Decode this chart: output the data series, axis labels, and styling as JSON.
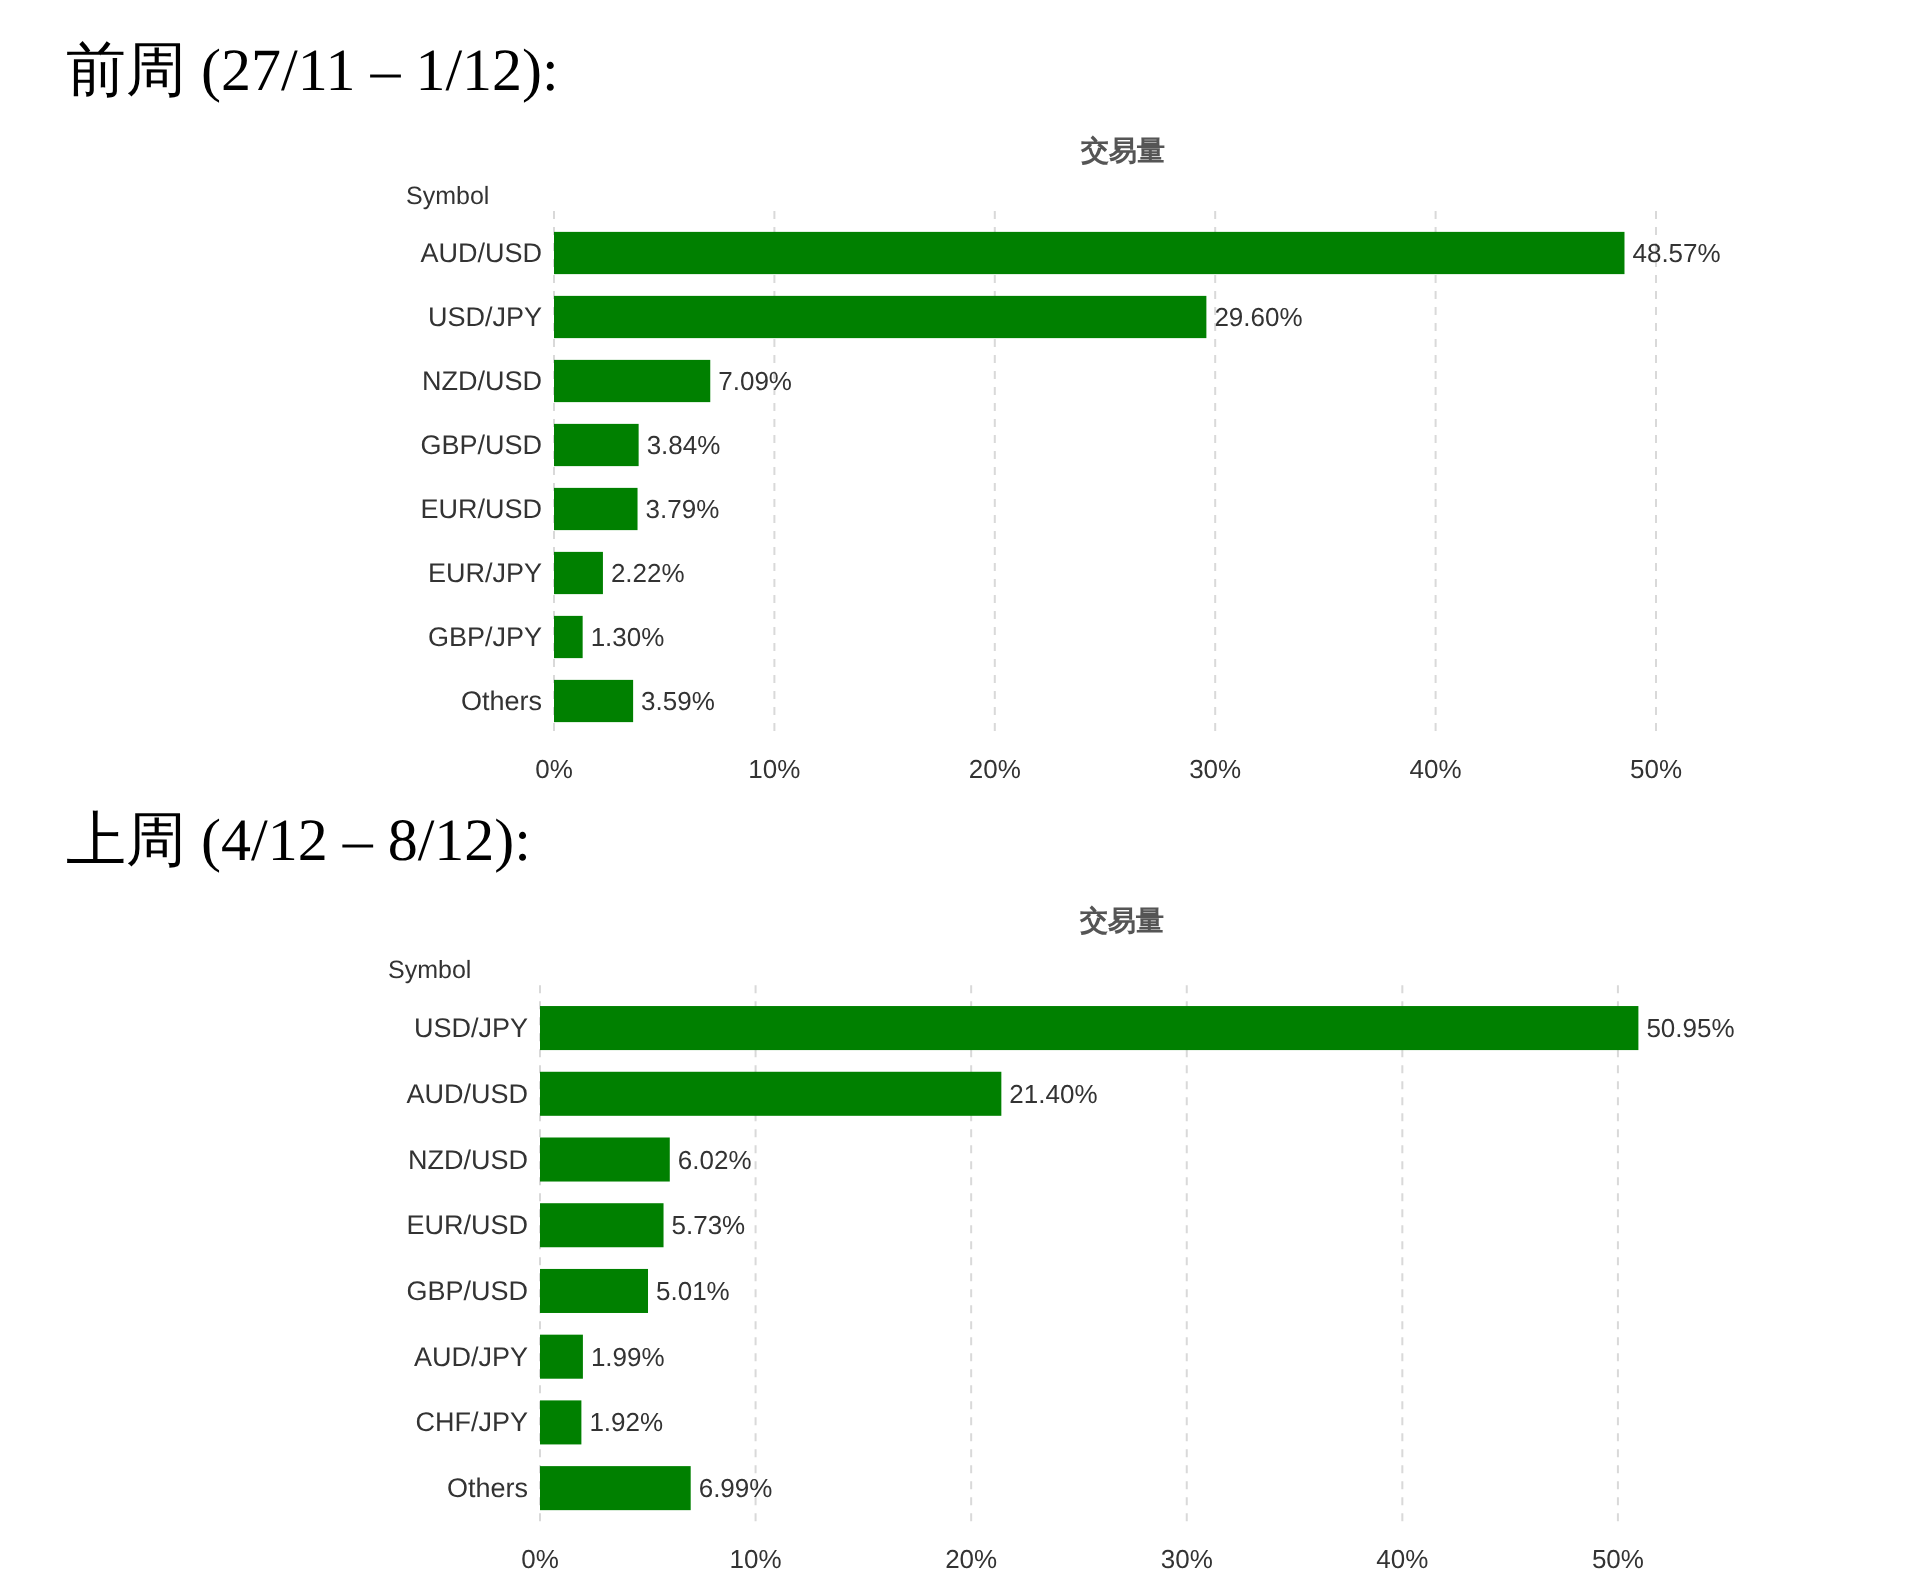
{
  "chart_data": [
    {
      "type": "bar",
      "orientation": "horizontal",
      "title": "前周 (27/11 – 1/12):",
      "xlabel": "交易量",
      "ylabel": "Symbol",
      "categories": [
        "AUD/USD",
        "USD/JPY",
        "NZD/USD",
        "GBP/USD",
        "EUR/USD",
        "EUR/JPY",
        "GBP/JPY",
        "Others"
      ],
      "values": [
        48.57,
        29.6,
        7.09,
        3.84,
        3.79,
        2.22,
        1.3,
        3.59
      ],
      "value_labels": [
        "48.57%",
        "29.60%",
        "7.09%",
        "3.84%",
        "3.79%",
        "2.22%",
        "1.30%",
        "3.59%"
      ],
      "color": "#008000",
      "xlim": [
        0,
        50
      ],
      "xticks": [
        {
          "value": 0,
          "label": "0%"
        },
        {
          "value": 10,
          "label": "10%"
        },
        {
          "value": 20,
          "label": "20%"
        },
        {
          "value": 30,
          "label": "30%"
        },
        {
          "value": 40,
          "label": "40%"
        },
        {
          "value": 50,
          "label": "50%"
        }
      ],
      "grid": "x"
    },
    {
      "type": "bar",
      "orientation": "horizontal",
      "title": "上周 (4/12 – 8/12):",
      "xlabel": "交易量",
      "ylabel": "Symbol",
      "categories": [
        "USD/JPY",
        "AUD/USD",
        "NZD/USD",
        "EUR/USD",
        "GBP/USD",
        "AUD/JPY",
        "CHF/JPY",
        "Others"
      ],
      "values": [
        50.95,
        21.4,
        6.02,
        5.73,
        5.01,
        1.99,
        1.92,
        6.99
      ],
      "value_labels": [
        "50.95%",
        "21.40%",
        "6.02%",
        "5.73%",
        "5.01%",
        "1.99%",
        "1.92%",
        "6.99%"
      ],
      "color": "#008000",
      "xlim": [
        0,
        50.95
      ],
      "xticks": [
        {
          "value": 0,
          "label": "0%"
        },
        {
          "value": 10,
          "label": "10%"
        },
        {
          "value": 20,
          "label": "20%"
        },
        {
          "value": 30,
          "label": "30%"
        },
        {
          "value": 40,
          "label": "40%"
        },
        {
          "value": 50,
          "label": "50%"
        }
      ],
      "grid": "x"
    }
  ]
}
